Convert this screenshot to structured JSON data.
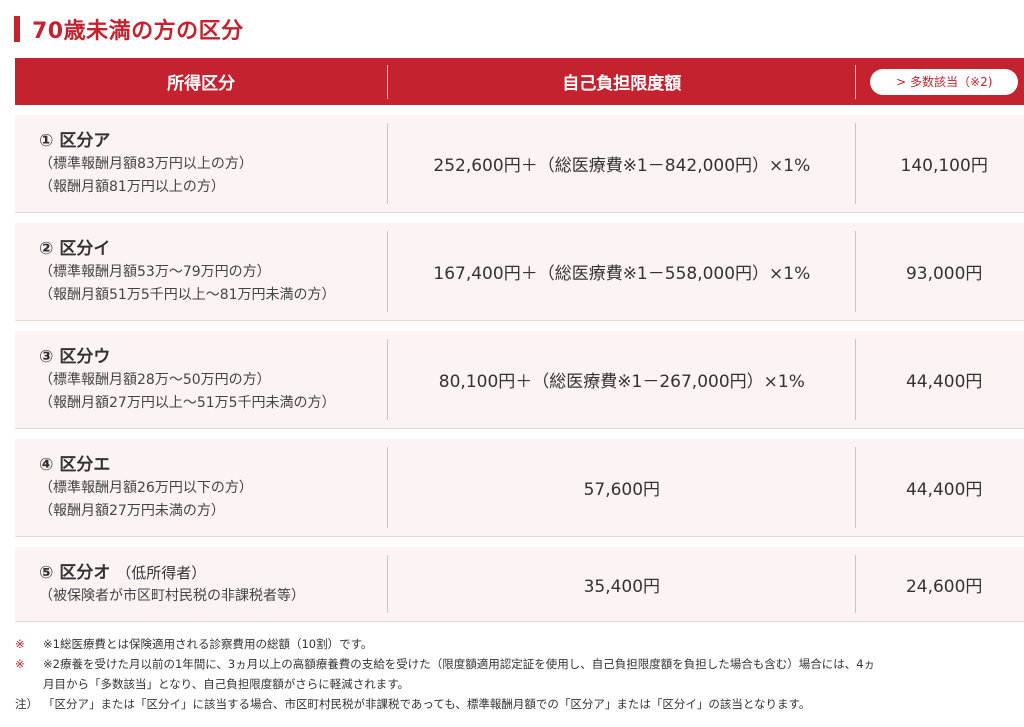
{
  "title": "70歳未満の方の区分",
  "header": {
    "col1": "所得区分",
    "col2": "自己負担限度額",
    "col3_pill_chevron": ">",
    "col3_pill_label": "多数該当（※2)"
  },
  "rows": [
    {
      "num": "①",
      "name": "区分ア",
      "sub": "",
      "note1": "（標準報酬月額83万円以上の方）",
      "note2": "（報酬月額81万円以上の方）",
      "limit": "252,600円＋（総医療費※1－842,000円）×1%",
      "multi": "140,100円"
    },
    {
      "num": "②",
      "name": "区分イ",
      "sub": "",
      "note1": "（標準報酬月額53万～79万円の方）",
      "note2": "（報酬月額51万5千円以上～81万円未満の方）",
      "limit": "167,400円＋（総医療費※1－558,000円）×1%",
      "multi": "93,000円"
    },
    {
      "num": "③",
      "name": "区分ウ",
      "sub": "",
      "note1": "（標準報酬月額28万～50万円の方）",
      "note2": "（報酬月額27万円以上～51万5千円未満の方）",
      "limit": "80,100円＋（総医療費※1－267,000円）×1%",
      "multi": "44,400円"
    },
    {
      "num": "④",
      "name": "区分エ",
      "sub": "",
      "note1": "（標準報酬月額26万円以下の方）",
      "note2": "（報酬月額27万円未満の方）",
      "limit": "57,600円",
      "multi": "44,400円"
    },
    {
      "num": "⑤",
      "name": "区分オ",
      "sub": "（低所得者）",
      "note1": "（被保険者が市区町村民税の非課税者等）",
      "note2": "",
      "limit": "35,400円",
      "multi": "24,600円"
    }
  ],
  "notes": {
    "n1_mark": "※",
    "n1_text": "※1総医療費とは保険適用される診察費用の総額（10割）です。",
    "n2_mark": "※",
    "n2_text_line1": "※2療養を受けた月以前の1年間に、3ヵ月以上の高額療養費の支給を受けた（限度額適用認定証を使用し、自己負担限度額を負担した場合も含む）場合には、4ヵ",
    "n2_text_line2": "月目から「多数該当」となり、自己負担限度額がさらに軽減されます。",
    "n3_mark": "注）",
    "n3_text": "「区分ア」または「区分イ」に該当する場合、市区町村民税が非課税であっても、標準報酬月額での「区分ア」または「区分イ」の該当となります。"
  },
  "colors": {
    "accent": "#c4222e",
    "row_bg": "#fcf3f3"
  }
}
